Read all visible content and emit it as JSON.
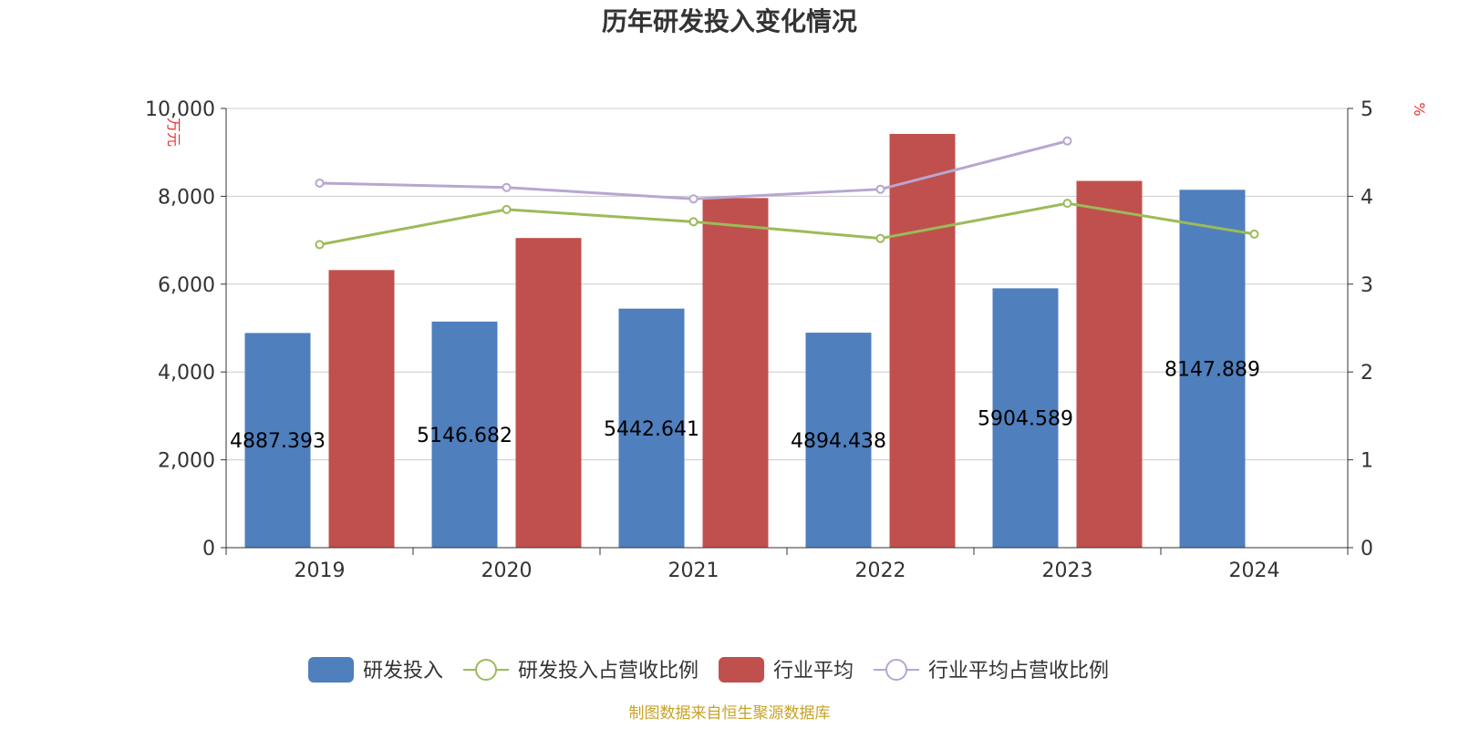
{
  "chart_data": {
    "type": "bar",
    "title": "历年研发投入变化情况",
    "categories": [
      "2019",
      "2020",
      "2021",
      "2022",
      "2023",
      "2024"
    ],
    "left_axis": {
      "unit": "万元",
      "ylim": [
        0,
        10000
      ],
      "ticks": [
        "0",
        "2,000",
        "4,000",
        "6,000",
        "8,000",
        "10,000"
      ],
      "tick_values": [
        0,
        2000,
        4000,
        6000,
        8000,
        10000
      ]
    },
    "right_axis": {
      "unit": "%",
      "ylim": [
        0,
        5
      ],
      "ticks": [
        "0",
        "1",
        "2",
        "3",
        "4",
        "5"
      ],
      "tick_values": [
        0,
        1,
        2,
        3,
        4,
        5
      ]
    },
    "series": [
      {
        "name": "研发投入",
        "type": "bar",
        "axis": "left",
        "color": "#4f7fbd",
        "values": [
          4887.393,
          5146.682,
          5442.641,
          4894.438,
          5904.589,
          8147.889
        ],
        "labels": [
          "4887.393",
          "5146.682",
          "5442.641",
          "4894.438",
          "5904.589",
          "8147.889"
        ]
      },
      {
        "name": "研发投入占营收比例",
        "type": "line",
        "axis": "right",
        "color": "#9bbb59",
        "values": [
          3.45,
          3.85,
          3.71,
          3.52,
          3.92,
          3.57
        ]
      },
      {
        "name": "行业平均",
        "type": "bar",
        "axis": "left",
        "color": "#c0504d",
        "values": [
          6320,
          7050,
          7960,
          9420,
          8350,
          null
        ]
      },
      {
        "name": "行业平均占营收比例",
        "type": "line",
        "axis": "right",
        "color": "#b7a7d0",
        "values": [
          4.15,
          4.1,
          3.97,
          4.08,
          4.63,
          null
        ]
      }
    ],
    "grid": true,
    "legend_position": "bottom"
  },
  "footer": {
    "source": "制图数据来自恒生聚源数据库"
  }
}
